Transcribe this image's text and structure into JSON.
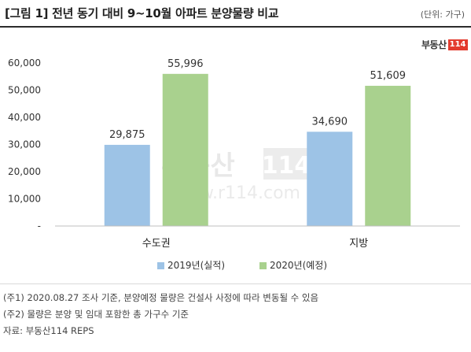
{
  "title": "[그림 1] 전년 동기 대비 9~10월 아파트 분양물량 비교",
  "unit": "(단위: 가구)",
  "logo": {
    "text": "부동산",
    "number": "114"
  },
  "watermark": {
    "brand": "부동산",
    "number": "114",
    "url": "www.r114.com"
  },
  "colors": {
    "series2019": "#9dc3e6",
    "series2020": "#a9d18e",
    "accent": "#e33b2e"
  },
  "chart_data": {
    "type": "bar",
    "categories": [
      "수도권",
      "지방"
    ],
    "series": [
      {
        "name": "2019년(실적)",
        "values": [
          29875,
          34690
        ],
        "labels": [
          "29,875",
          "34,690"
        ]
      },
      {
        "name": "2020년(예정)",
        "values": [
          55996,
          51609
        ],
        "labels": [
          "55,996",
          "51,609"
        ]
      }
    ],
    "y_ticks": [
      "-",
      "10,000",
      "20,000",
      "30,000",
      "40,000",
      "50,000",
      "60,000"
    ],
    "ylim": [
      0,
      60000
    ],
    "grid": false,
    "legend": "bottom"
  },
  "notes": [
    "(주1) 2020.08.27 조사 기준, 분양예정 물량은 건설사 사정에 따라 변동될 수 있음",
    "(주2) 물량은 분양 및 임대 포함한 총 가구수 기준",
    "자료: 부동산114 REPS"
  ]
}
